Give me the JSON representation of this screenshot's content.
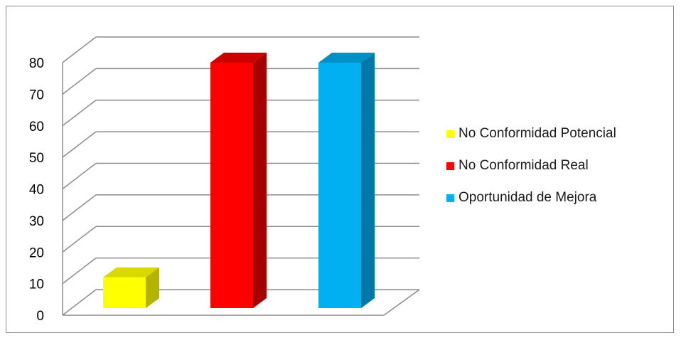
{
  "chart_data": {
    "type": "bar",
    "categories": [
      "No Conformidad Potencial",
      "No Conformidad Real",
      "Oportunidad de Mejora"
    ],
    "values": [
      12,
      80,
      80
    ],
    "colors": [
      "#ffff00",
      "#ff0000",
      "#00b0f0"
    ],
    "side_colors": [
      "#b3b300",
      "#a60000",
      "#0079a8"
    ],
    "top_colors": [
      "#d9d900",
      "#cc0000",
      "#0090c8"
    ],
    "ylim": [
      0,
      80
    ],
    "yticks": [
      0,
      10,
      20,
      30,
      40,
      50,
      60,
      70,
      80
    ],
    "grid": true,
    "legend_position": "right",
    "style": "3d-column",
    "title": "",
    "xlabel": "",
    "ylabel": ""
  },
  "legend": [
    {
      "label": "No Conformidad Potencial",
      "color": "#ffff00"
    },
    {
      "label": "No Conformidad Real",
      "color": "#ff0000"
    },
    {
      "label": "Oportunidad de Mejora",
      "color": "#00b0f0"
    }
  ]
}
